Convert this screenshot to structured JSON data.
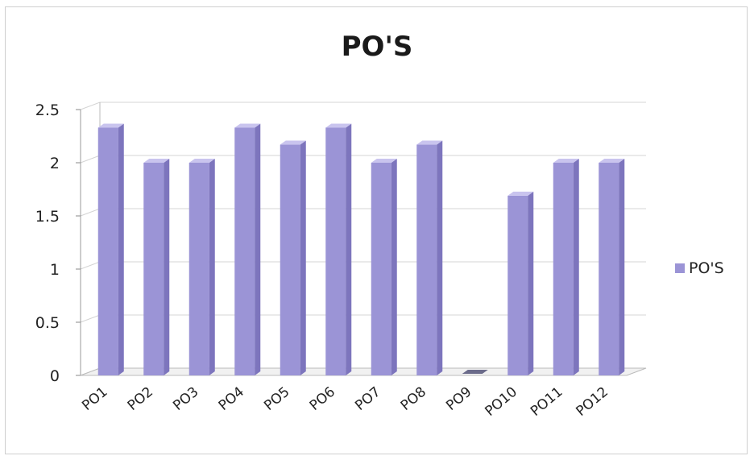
{
  "chart_data": {
    "type": "bar",
    "title": "PO'S",
    "categories": [
      "PO1",
      "PO2",
      "PO3",
      "PO4",
      "PO5",
      "PO6",
      "PO7",
      "PO8",
      "PO9",
      "PO10",
      "PO11",
      "PO12"
    ],
    "series": [
      {
        "name": "PO'S",
        "values": [
          2.33,
          2.0,
          2.0,
          2.33,
          2.17,
          2.33,
          2.0,
          2.17,
          0,
          1.69,
          2.0,
          2.0
        ]
      }
    ],
    "ylim": [
      0,
      2.5
    ],
    "yticks": [
      "0",
      "0.5",
      "1",
      "1.5",
      "2",
      "2.5"
    ],
    "grid": true,
    "legend": "right",
    "colors": {
      "bar_front": "#9b94d6",
      "bar_side": "#7d75bd",
      "bar_top": "#c9c4ee"
    }
  }
}
